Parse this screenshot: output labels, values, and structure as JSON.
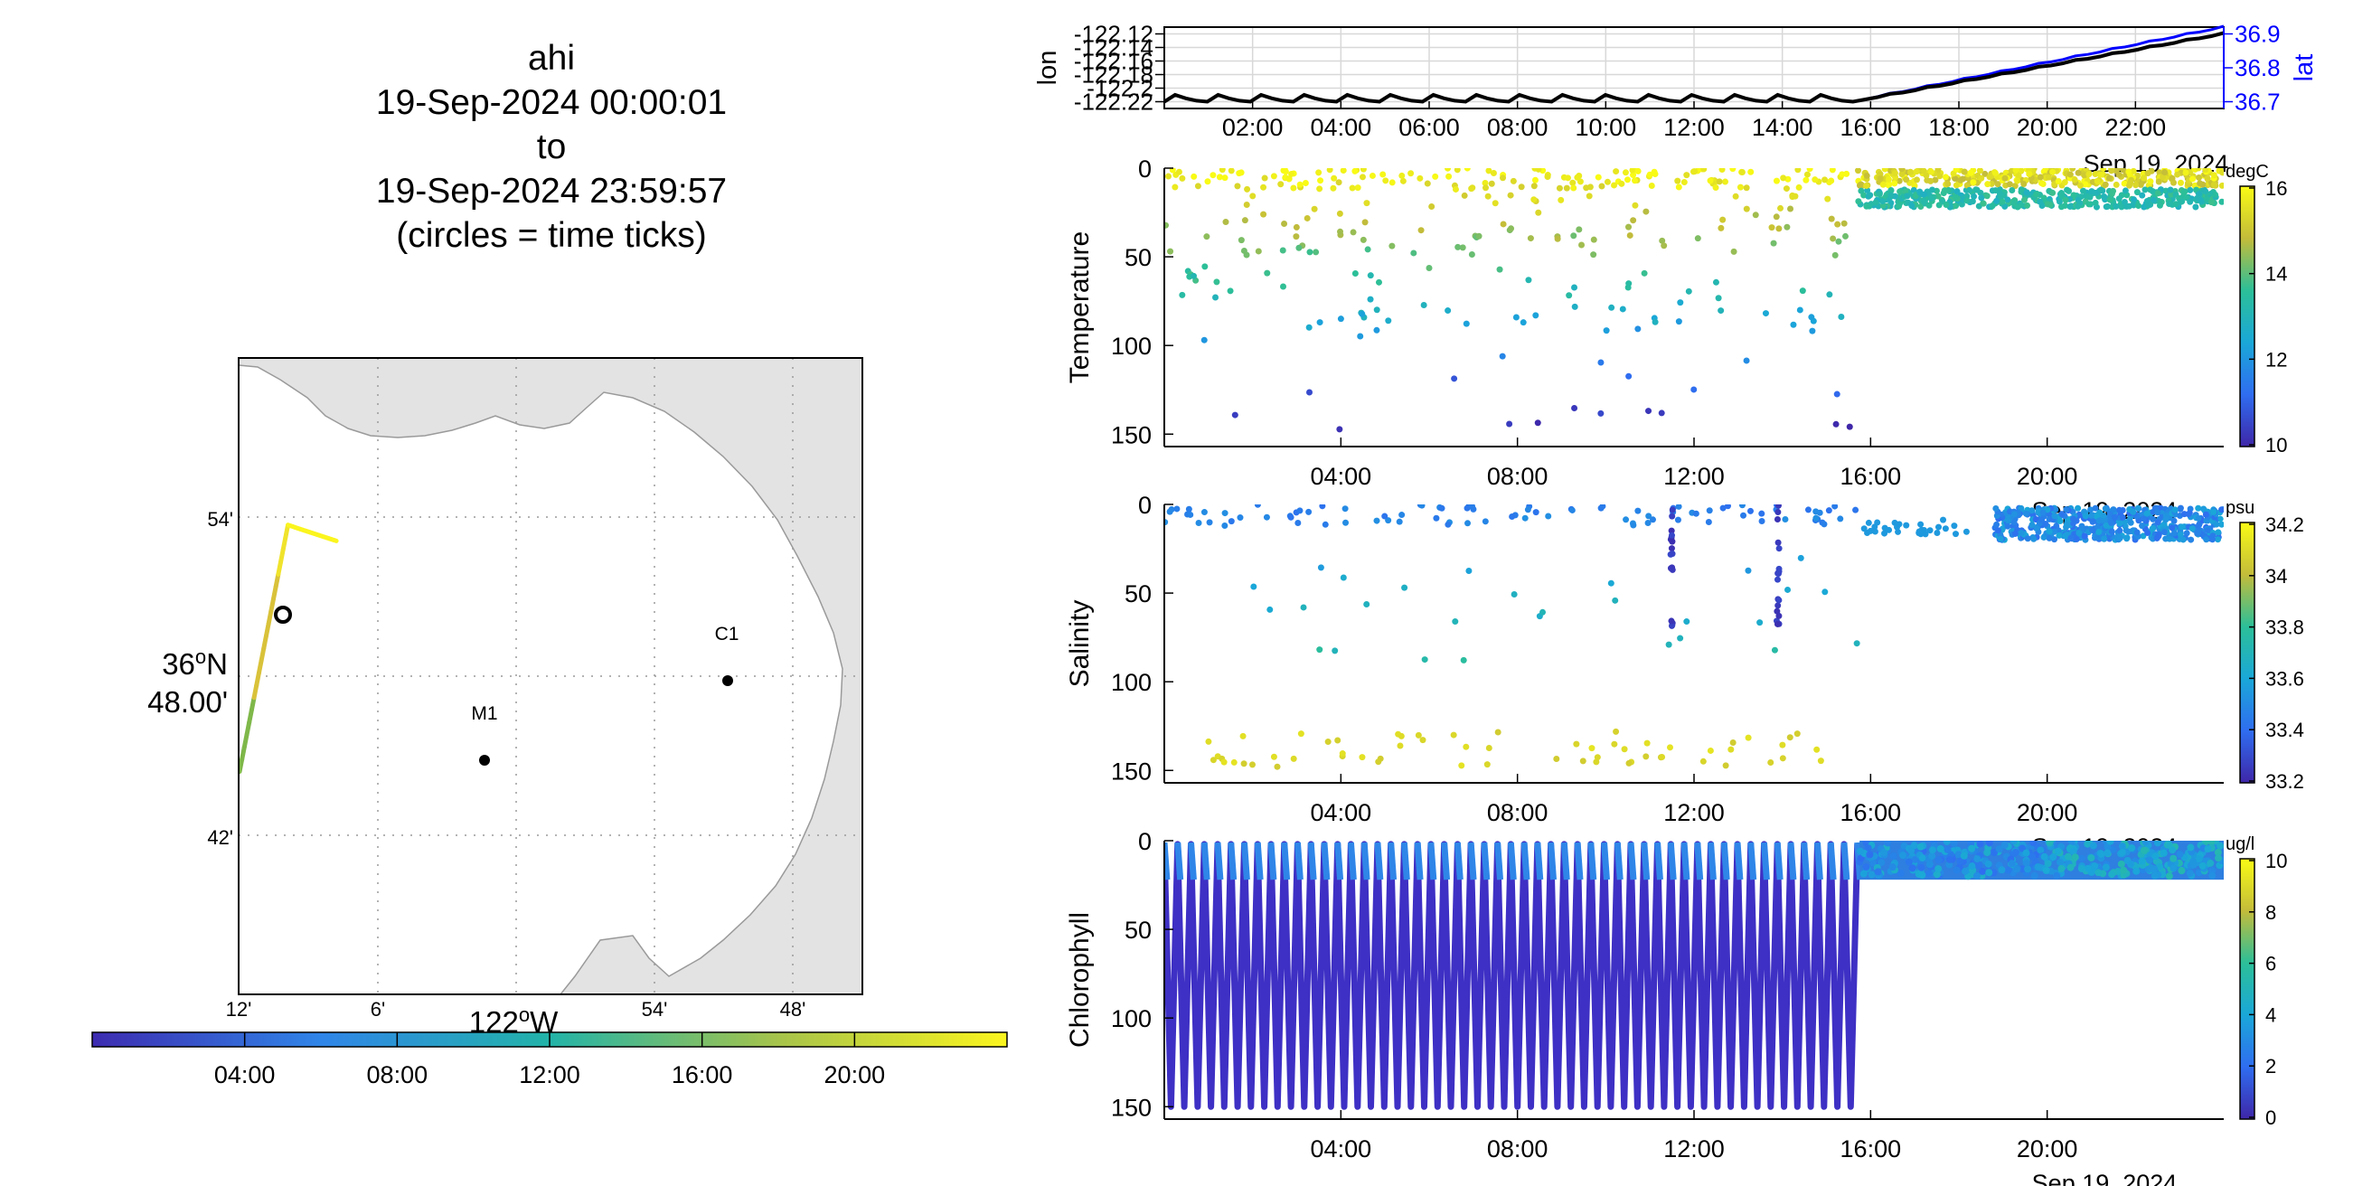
{
  "header": {
    "lines": [
      "ahi",
      "19-Sep-2024 00:00:01",
      "to",
      "19-Sep-2024 23:59:57",
      "(circles = time ticks)"
    ]
  },
  "map": {
    "lat_ticks": [
      "54'",
      "36°N 48.00'",
      "42'"
    ],
    "lon_ticks": [
      "12'",
      "6'",
      "122°W",
      "54'",
      "48'"
    ],
    "lon_label": "122°W",
    "moorings": [
      {
        "name": "C1",
        "lon": -121.9,
        "lat": 36.797
      },
      {
        "name": "M1",
        "lon": -122.02,
        "lat": 36.747
      }
    ],
    "track": [
      [
        -122.2,
        36.74
      ],
      [
        -122.165,
        36.895
      ],
      [
        -122.13,
        36.885
      ]
    ],
    "colorbar": {
      "ticks": [
        "04:00",
        "08:00",
        "12:00",
        "16:00",
        "20:00"
      ],
      "colors": [
        "#3d2bb0",
        "#2f85e8",
        "#22b3a8",
        "#a6c34a",
        "#fbf51e"
      ]
    }
  },
  "chart_data": [
    {
      "type": "line",
      "panel": "position",
      "xlabel": "",
      "x_ticks": [
        "02:00",
        "04:00",
        "06:00",
        "08:00",
        "10:00",
        "12:00",
        "14:00",
        "16:00",
        "18:00",
        "20:00",
        "22:00"
      ],
      "date_label": "Sep 19, 2024",
      "ylabel_left": "lon",
      "ylabel_right": "lat",
      "left_ticks": [
        "-122.12",
        "-122.14",
        "-122.16",
        "-122.18",
        "-122.2",
        "-122.22"
      ],
      "right_ticks": [
        "36.9",
        "36.8",
        "36.7"
      ],
      "ylim_left": [
        -122.23,
        -122.11
      ],
      "ylim_right": [
        36.68,
        36.92
      ],
      "series": [
        {
          "name": "lon",
          "color": "#000000"
        },
        {
          "name": "lat",
          "color": "#0000ff"
        }
      ]
    },
    {
      "type": "scatter",
      "panel": "temperature",
      "ylabel": "Temperature",
      "units": "degC",
      "y_ticks": [
        "0",
        "50",
        "100",
        "150"
      ],
      "ylim": [
        157,
        0
      ],
      "x_ticks": [
        "04:00",
        "08:00",
        "12:00",
        "16:00",
        "20:00"
      ],
      "date_label": "Sep 19, 2024",
      "colorbar_ticks": [
        "16",
        "14",
        "12",
        "10"
      ],
      "clim": [
        8.5,
        16
      ]
    },
    {
      "type": "scatter",
      "panel": "salinity",
      "ylabel": "Salinity",
      "units": "psu",
      "y_ticks": [
        "0",
        "50",
        "100",
        "150"
      ],
      "ylim": [
        157,
        0
      ],
      "x_ticks": [
        "04:00",
        "08:00",
        "12:00",
        "16:00",
        "20:00"
      ],
      "date_label": "Sep 19, 2024",
      "colorbar_ticks": [
        "34.2",
        "34",
        "33.8",
        "33.6",
        "33.4",
        "33.2"
      ],
      "clim": [
        33.2,
        34.2
      ]
    },
    {
      "type": "scatter",
      "panel": "chlorophyll",
      "ylabel": "Chlorophyll",
      "units": "ug/l",
      "y_ticks": [
        "0",
        "50",
        "100",
        "150"
      ],
      "ylim": [
        157,
        0
      ],
      "x_ticks": [
        "04:00",
        "08:00",
        "12:00",
        "16:00",
        "20:00"
      ],
      "date_label": "Sep 19, 2024",
      "colorbar_ticks": [
        "10",
        "8",
        "6",
        "4",
        "2",
        "0"
      ],
      "clim": [
        0,
        10
      ]
    }
  ]
}
